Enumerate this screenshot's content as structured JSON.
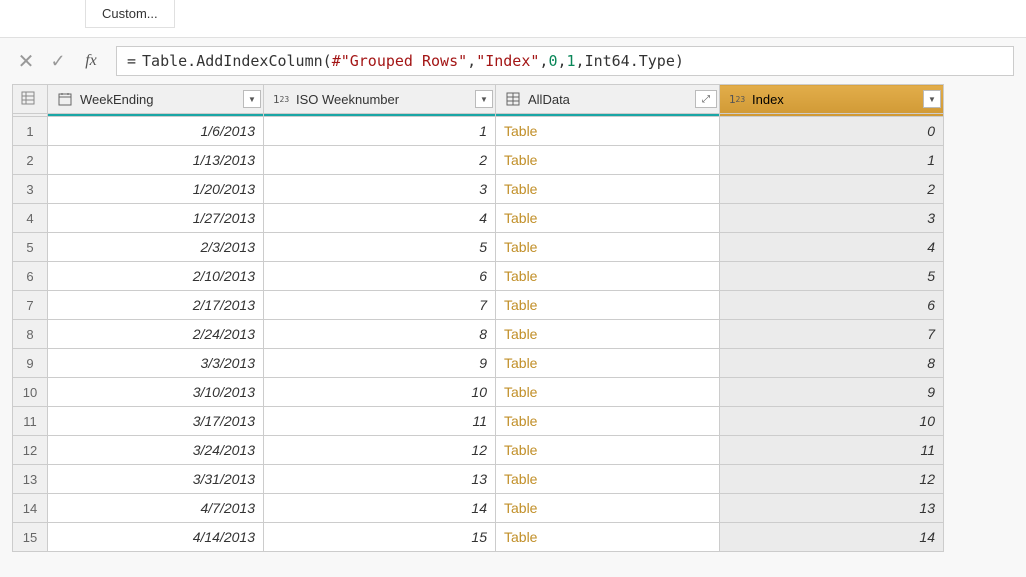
{
  "ribbon": {
    "custom_label": "Custom..."
  },
  "formula": {
    "raw": "= Table.AddIndexColumn(#\"Grouped Rows\", \"Index\", 0, 1, Int64.Type)",
    "func": "Table.AddIndexColumn",
    "arg_ref": "#\"Grouped Rows\"",
    "arg_colname": "\"Index\"",
    "arg_start": "0",
    "arg_step": "1",
    "arg_type": "Int64.Type"
  },
  "columns": [
    {
      "key": "WeekEnding",
      "label": "WeekEnding",
      "type": "date",
      "selected": false
    },
    {
      "key": "ISOWeeknumber",
      "label": "ISO Weeknumber",
      "type": "number",
      "selected": false
    },
    {
      "key": "AllData",
      "label": "AllData",
      "type": "table",
      "selected": false
    },
    {
      "key": "Index",
      "label": "Index",
      "type": "number",
      "selected": true
    }
  ],
  "rows": [
    {
      "n": "1",
      "WeekEnding": "1/6/2013",
      "ISOWeeknumber": "1",
      "AllData": "Table",
      "Index": "0"
    },
    {
      "n": "2",
      "WeekEnding": "1/13/2013",
      "ISOWeeknumber": "2",
      "AllData": "Table",
      "Index": "1"
    },
    {
      "n": "3",
      "WeekEnding": "1/20/2013",
      "ISOWeeknumber": "3",
      "AllData": "Table",
      "Index": "2"
    },
    {
      "n": "4",
      "WeekEnding": "1/27/2013",
      "ISOWeeknumber": "4",
      "AllData": "Table",
      "Index": "3"
    },
    {
      "n": "5",
      "WeekEnding": "2/3/2013",
      "ISOWeeknumber": "5",
      "AllData": "Table",
      "Index": "4"
    },
    {
      "n": "6",
      "WeekEnding": "2/10/2013",
      "ISOWeeknumber": "6",
      "AllData": "Table",
      "Index": "5"
    },
    {
      "n": "7",
      "WeekEnding": "2/17/2013",
      "ISOWeeknumber": "7",
      "AllData": "Table",
      "Index": "6"
    },
    {
      "n": "8",
      "WeekEnding": "2/24/2013",
      "ISOWeeknumber": "8",
      "AllData": "Table",
      "Index": "7"
    },
    {
      "n": "9",
      "WeekEnding": "3/3/2013",
      "ISOWeeknumber": "9",
      "AllData": "Table",
      "Index": "8"
    },
    {
      "n": "10",
      "WeekEnding": "3/10/2013",
      "ISOWeeknumber": "10",
      "AllData": "Table",
      "Index": "9"
    },
    {
      "n": "11",
      "WeekEnding": "3/17/2013",
      "ISOWeeknumber": "11",
      "AllData": "Table",
      "Index": "10"
    },
    {
      "n": "12",
      "WeekEnding": "3/24/2013",
      "ISOWeeknumber": "12",
      "AllData": "Table",
      "Index": "11"
    },
    {
      "n": "13",
      "WeekEnding": "3/31/2013",
      "ISOWeeknumber": "13",
      "AllData": "Table",
      "Index": "12"
    },
    {
      "n": "14",
      "WeekEnding": "4/7/2013",
      "ISOWeeknumber": "14",
      "AllData": "Table",
      "Index": "13"
    },
    {
      "n": "15",
      "WeekEnding": "4/14/2013",
      "ISOWeeknumber": "15",
      "AllData": "Table",
      "Index": "14"
    }
  ],
  "colors": {
    "selected_header": "#d9a441",
    "teal_bar": "#1aa6a6",
    "link": "#c18f28",
    "index_bg": "#ebebeb"
  }
}
